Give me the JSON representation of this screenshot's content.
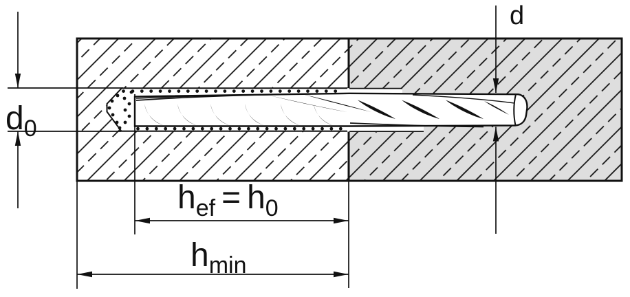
{
  "labels": {
    "d": "d",
    "d0": {
      "base": "d",
      "sub": "0"
    },
    "hef": {
      "base1": "h",
      "sub1": "ef",
      "eq": "=",
      "base2": "h",
      "sub2": "0"
    },
    "hmin": {
      "base": "h",
      "sub": "min"
    }
  },
  "colors": {
    "line": "#111111",
    "base_block_fill": "#ffffff",
    "fixture_block_fill": "#dedede",
    "background": "#ffffff"
  }
}
